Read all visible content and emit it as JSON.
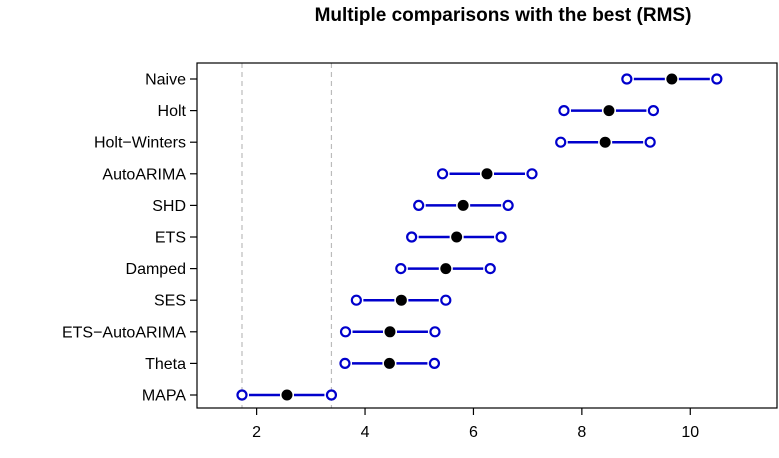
{
  "chart_data": {
    "type": "interval",
    "title": "Multiple comparisons with the best (RMS)",
    "xlabel": "",
    "ylabel": "",
    "xlim": [
      0.9,
      11.6
    ],
    "x_ticks": [
      2,
      4,
      6,
      8,
      10
    ],
    "reference_lines": [
      1.73,
      3.38
    ],
    "colors": {
      "interval": "#0000cc",
      "point": "#000000",
      "reference": "#bbbbbb"
    },
    "methods": [
      {
        "name": "Naive",
        "mean": 9.66,
        "lower": 8.83,
        "upper": 10.49
      },
      {
        "name": "Holt",
        "mean": 8.5,
        "lower": 7.67,
        "upper": 9.32
      },
      {
        "name": "Holt−Winters",
        "mean": 8.43,
        "lower": 7.61,
        "upper": 9.26
      },
      {
        "name": "AutoARIMA",
        "mean": 6.25,
        "lower": 5.43,
        "upper": 7.08
      },
      {
        "name": "SHD",
        "mean": 5.81,
        "lower": 4.99,
        "upper": 6.64
      },
      {
        "name": "ETS",
        "mean": 5.69,
        "lower": 4.86,
        "upper": 6.51
      },
      {
        "name": "Damped",
        "mean": 5.49,
        "lower": 4.66,
        "upper": 6.31
      },
      {
        "name": "SES",
        "mean": 4.67,
        "lower": 3.84,
        "upper": 5.49
      },
      {
        "name": "ETS−AutoARIMA",
        "mean": 4.46,
        "lower": 3.64,
        "upper": 5.29
      },
      {
        "name": "Theta",
        "mean": 4.45,
        "lower": 3.63,
        "upper": 5.28
      },
      {
        "name": "MAPA",
        "mean": 2.56,
        "lower": 1.73,
        "upper": 3.38
      }
    ]
  }
}
